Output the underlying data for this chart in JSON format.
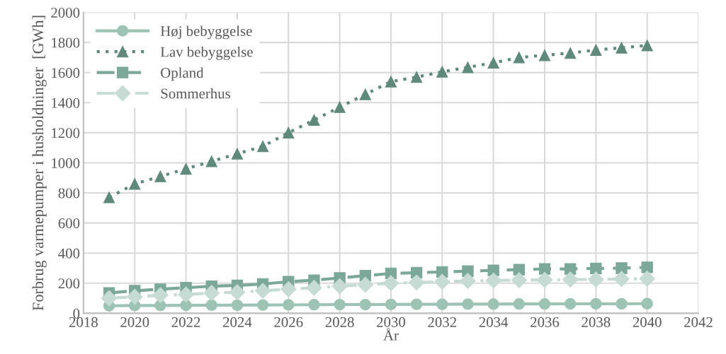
{
  "chart_data": {
    "type": "line",
    "xlabel": "År",
    "ylabel": "Forbrug varmepumper i husholdninger  [GWh]",
    "x": [
      2019,
      2020,
      2021,
      2022,
      2023,
      2024,
      2025,
      2026,
      2027,
      2028,
      2029,
      2030,
      2031,
      2032,
      2033,
      2034,
      2035,
      2036,
      2037,
      2038,
      2039,
      2040
    ],
    "series": [
      {
        "name": "Høj bebyggelse",
        "color": "#9dc3b5",
        "marker": "circle",
        "line_style": "solid",
        "values": [
          50,
          52,
          52,
          53,
          54,
          54,
          55,
          56,
          57,
          58,
          58,
          59,
          60,
          60,
          61,
          61,
          62,
          62,
          63,
          63,
          63,
          64
        ]
      },
      {
        "name": "Lav bebyggelse",
        "color": "#5f8a7b",
        "marker": "triangle",
        "line_style": "dotted",
        "values": [
          770,
          860,
          910,
          960,
          1010,
          1060,
          1110,
          1200,
          1285,
          1370,
          1455,
          1540,
          1570,
          1605,
          1635,
          1665,
          1700,
          1715,
          1730,
          1750,
          1765,
          1780
        ]
      },
      {
        "name": "Opland",
        "color": "#7ba898",
        "marker": "square",
        "line_style": "dashed",
        "values": [
          135,
          150,
          160,
          170,
          180,
          185,
          195,
          210,
          220,
          235,
          250,
          265,
          270,
          275,
          280,
          285,
          290,
          295,
          295,
          298,
          300,
          305
        ]
      },
      {
        "name": "Sommerhus",
        "color": "#c5dbd3",
        "marker": "diamond",
        "line_style": "dashdot",
        "values": [
          100,
          110,
          120,
          125,
          135,
          140,
          150,
          160,
          170,
          180,
          190,
          200,
          205,
          210,
          215,
          218,
          220,
          222,
          225,
          225,
          228,
          230
        ]
      }
    ],
    "xlim": [
      2018,
      2042
    ],
    "xticks": [
      2018,
      2020,
      2022,
      2024,
      2026,
      2028,
      2030,
      2032,
      2034,
      2036,
      2038,
      2040,
      2042
    ],
    "ylim": [
      0,
      2000
    ],
    "yticks": [
      0,
      200,
      400,
      600,
      800,
      1000,
      1200,
      1400,
      1600,
      1800,
      2000
    ],
    "grid": true,
    "legend": "top left"
  }
}
